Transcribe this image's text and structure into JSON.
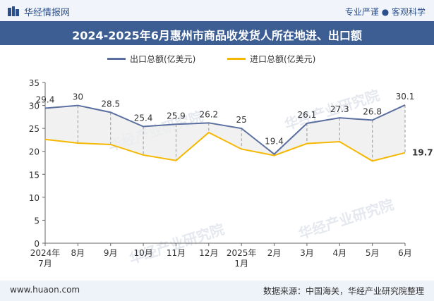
{
  "header": {
    "brand": "华经情报网",
    "tagline": "专业严谨 ● 客观科学"
  },
  "watermark": "华经产业研究院",
  "footer": {
    "website": "www.huaon.com",
    "source": "数据来源：中国海关，华经产业研究院整理"
  },
  "colors": {
    "export": "#5b6fa0",
    "import": "#f5b800",
    "titlebar": "#3d5e92",
    "fill": "#eeeeee"
  },
  "chart_data": {
    "type": "line",
    "title": "2024-2025年6月惠州市商品收发货人所在地进、出口额",
    "categories": [
      "2024年\n7月",
      "8月",
      "9月",
      "10月",
      "11月",
      "12月",
      "2025年\n1月",
      "2月",
      "3月",
      "4月",
      "5月",
      "6月"
    ],
    "series": [
      {
        "name": "出口总额(亿美元)",
        "values": [
          29.4,
          30,
          28.5,
          25.4,
          25.9,
          26.2,
          25,
          19.4,
          26.1,
          27.3,
          26.8,
          30.1
        ],
        "labeled": true
      },
      {
        "name": "进口总额(亿美元)",
        "values": [
          22.6,
          21.8,
          21.5,
          19.2,
          18,
          24.1,
          20.5,
          19.1,
          21.7,
          22.1,
          17.9,
          19.7
        ],
        "labeled_last_only": true,
        "last_label": "19.7"
      }
    ],
    "ylim": [
      0,
      35
    ],
    "yticks": [
      0,
      5,
      10,
      15,
      20,
      25,
      30,
      35
    ],
    "legend": "top-center",
    "grid": false
  }
}
